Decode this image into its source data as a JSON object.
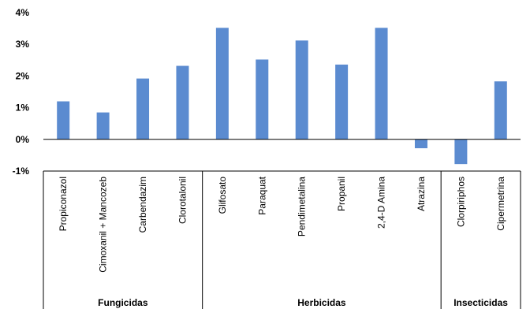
{
  "chart_data": {
    "type": "bar",
    "title": "",
    "xlabel": "",
    "ylabel": "",
    "ylim": [
      -1,
      4
    ],
    "yticks": [
      "-1%",
      "0%",
      "1%",
      "2%",
      "3%",
      "4%"
    ],
    "grid": false,
    "bar_color": "#5B8BD0",
    "categories": [
      "Propiconazol",
      "Cimoxanil + Mancozeb",
      "Carbendazim",
      "Clorotalonil",
      "Glifosato",
      "Paraquat",
      "Pendimetalina",
      "Propanil",
      "2,4-D Amina",
      "Atrazina",
      "Clorpiriphos",
      "Cipermetrina"
    ],
    "values": [
      1.2,
      0.85,
      1.92,
      2.32,
      3.52,
      2.52,
      3.12,
      2.36,
      3.52,
      -0.28,
      -0.78,
      1.83
    ],
    "groups": [
      {
        "label": "Fungicidas",
        "count": 4
      },
      {
        "label": "Herbicidas",
        "count": 6
      },
      {
        "label": "Insecticidas",
        "count": 2
      }
    ]
  }
}
